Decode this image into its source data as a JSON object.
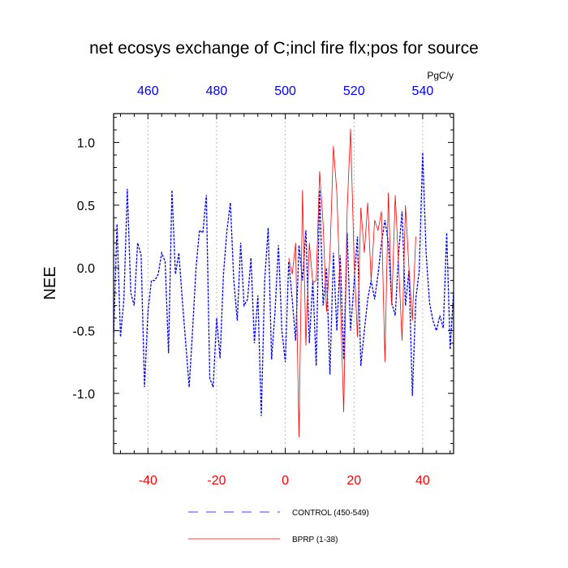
{
  "chart_data": {
    "type": "line",
    "title": "net ecosys exchange of C;incl fire flx;pos for source",
    "units": "PgC/y",
    "ylabel": "NEE",
    "xlabel": "",
    "ylim": [
      -1.48,
      1.23
    ],
    "yticks": [
      -1.0,
      -0.5,
      0.0,
      0.5,
      1.0
    ],
    "ytick_labels": [
      "-1.0",
      "-0.5",
      "0.0",
      "0.5",
      "1.0"
    ],
    "bottom_axis": {
      "lim": [
        -50,
        49
      ],
      "ticks": [
        -40,
        -20,
        0,
        20,
        40
      ],
      "tick_labels": [
        "-40",
        "-20",
        "0",
        "20",
        "40"
      ],
      "color": "#ff0000"
    },
    "top_axis": {
      "ticks": [
        460,
        480,
        500,
        520,
        540
      ],
      "tick_labels": [
        "460",
        "480",
        "500",
        "520",
        "540"
      ],
      "color": "#0000ff"
    },
    "vertical_grid_at": [
      -40,
      -20,
      0,
      20,
      40
    ],
    "series": [
      {
        "name": "CONTROL (450-549)",
        "color": "#0000ff",
        "style": "dashed",
        "x": [
          -50,
          -49,
          -48,
          -47,
          -46,
          -45,
          -44,
          -43,
          -42,
          -41,
          -40,
          -39,
          -38,
          -37,
          -36,
          -35,
          -34,
          -33,
          -32,
          -31,
          -30,
          -29,
          -28,
          -27,
          -26,
          -25,
          -24,
          -23,
          -22,
          -21,
          -20,
          -19,
          -18,
          -17,
          -16,
          -15,
          -14,
          -13,
          -12,
          -11,
          -10,
          -9,
          -8,
          -7,
          -6,
          -5,
          -4,
          -3,
          -2,
          -1,
          0,
          1,
          2,
          3,
          4,
          5,
          6,
          7,
          8,
          9,
          10,
          11,
          12,
          13,
          14,
          15,
          16,
          17,
          18,
          19,
          20,
          21,
          22,
          23,
          24,
          25,
          26,
          27,
          28,
          29,
          30,
          31,
          32,
          33,
          34,
          35,
          36,
          37,
          38,
          39,
          40,
          41,
          42,
          43,
          44,
          45,
          46,
          47,
          48,
          49
        ],
        "values": [
          -0.55,
          0.35,
          -0.55,
          -0.25,
          0.63,
          -0.2,
          -0.3,
          0.2,
          0.1,
          -0.95,
          -0.35,
          -0.1,
          -0.1,
          -0.05,
          0.12,
          0.05,
          -0.68,
          0.62,
          -0.05,
          0.12,
          -0.25,
          -0.6,
          -0.95,
          -0.5,
          0.0,
          0.3,
          0.28,
          0.58,
          -0.88,
          -0.95,
          -0.4,
          -0.72,
          -0.05,
          0.3,
          0.52,
          -0.1,
          -0.42,
          0.2,
          -0.3,
          -0.25,
          0.08,
          -0.6,
          -0.22,
          -1.18,
          -0.1,
          0.32,
          -0.73,
          -0.35,
          0.18,
          -0.5,
          -0.75,
          0.05,
          -0.25,
          -0.58,
          0.18,
          -0.1,
          0.3,
          -0.6,
          -0.1,
          -0.78,
          0.62,
          -0.3,
          0.0,
          -0.85,
          0.12,
          -0.5,
          0.1,
          -0.73,
          0.28,
          -0.5,
          -0.12,
          0.25,
          -0.78,
          -0.5,
          -0.25,
          -0.1,
          -0.25,
          -0.05,
          0.2,
          0.38,
          0.2,
          -0.28,
          -0.38,
          0.12,
          0.45,
          -0.3,
          -0.02,
          -1.02,
          -0.25,
          -0.02,
          0.92,
          0.12,
          -0.28,
          -0.42,
          -0.5,
          -0.38,
          -0.48,
          0.28,
          -0.65,
          -0.18
        ]
      },
      {
        "name": "BPRP (1-38)",
        "color": "#ff0000",
        "style": "solid",
        "x": [
          1,
          2,
          3,
          4,
          5,
          6,
          7,
          8,
          9,
          10,
          11,
          12,
          13,
          14,
          15,
          16,
          17,
          18,
          19,
          20,
          21,
          22,
          23,
          24,
          25,
          26,
          27,
          28,
          29,
          30,
          31,
          32,
          33,
          34,
          35,
          36,
          37,
          38
        ],
        "values": [
          0.08,
          -0.05,
          0.2,
          -1.35,
          0.62,
          -0.62,
          0.2,
          -0.12,
          -0.1,
          0.77,
          0.35,
          -0.35,
          0.1,
          0.97,
          0.6,
          -0.2,
          -1.15,
          0.45,
          1.11,
          0.08,
          -0.55,
          0.48,
          0.12,
          0.52,
          -0.1,
          0.38,
          0.3,
          0.45,
          -0.75,
          0.6,
          -0.3,
          0.58,
          0.02,
          -0.58,
          0.5,
          0.0,
          -0.42,
          0.25
        ]
      }
    ],
    "legend": {
      "placement": "bottom-center",
      "entries": [
        "CONTROL (450-549)",
        "BPRP (1-38)"
      ]
    }
  }
}
